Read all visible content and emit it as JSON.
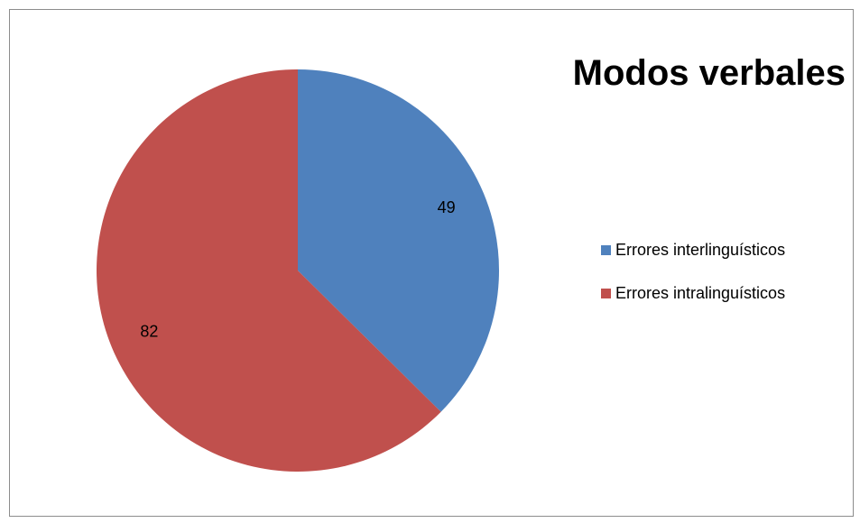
{
  "chart_data": {
    "type": "pie",
    "title": "Modos verbales",
    "categories": [
      "Errores interlinguísticos",
      "Errores intralinguísticos"
    ],
    "values": [
      49,
      82
    ],
    "colors": [
      "#4f81bd",
      "#c0504d"
    ],
    "data_labels": [
      "49",
      "82"
    ],
    "legend_position": "right"
  }
}
